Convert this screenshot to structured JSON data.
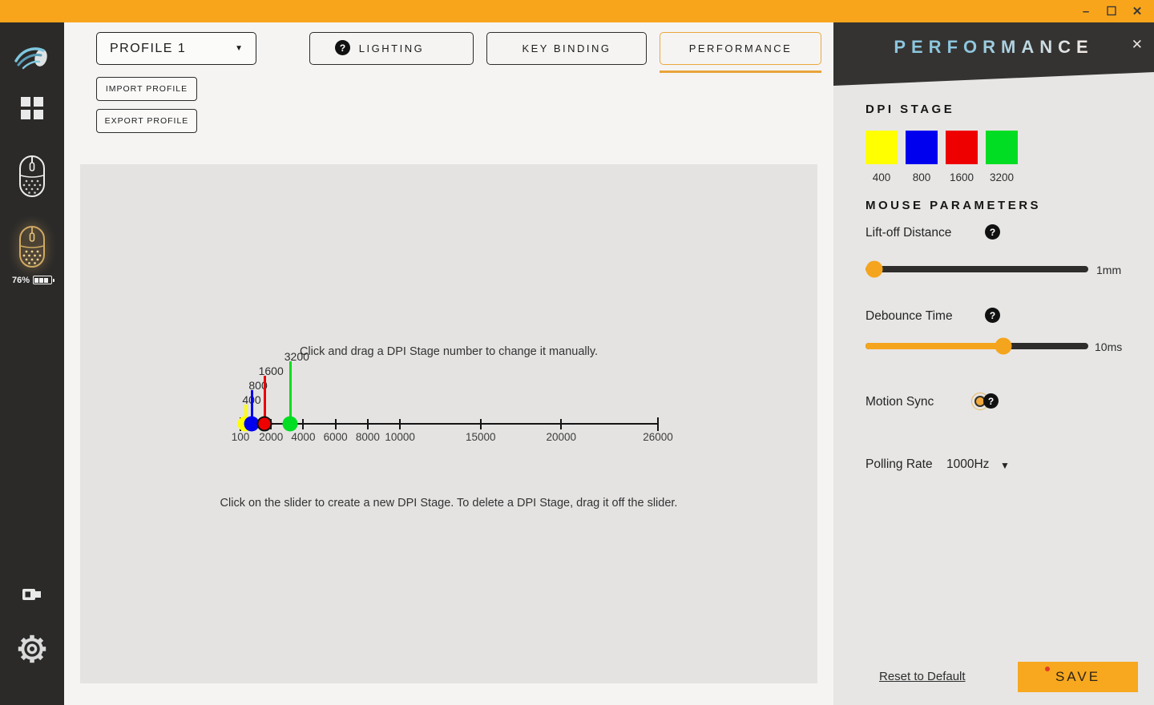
{
  "titlebar": {
    "minimize": "–",
    "maximize": "☐",
    "close": "✕"
  },
  "sidebar": {
    "battery": "76%"
  },
  "toolbar": {
    "profile": "PROFILE 1",
    "help": "?",
    "import": "IMPORT PROFILE",
    "export": "EXPORT PROFILE",
    "tabs": {
      "lighting": "LIGHTING",
      "keybinding": "KEY BINDING",
      "performance": "PERFORMANCE"
    },
    "active_tab": "PERFORMANCE"
  },
  "editor": {
    "hint_top": "Click and drag a DPI Stage number to change it manually.",
    "hint_bottom": "Click on the slider to create a new DPI Stage. To delete a DPI Stage, drag it off the slider."
  },
  "chart_data": {
    "type": "slider",
    "title": "DPI stage slider",
    "axis_min": 100,
    "axis_max": 26000,
    "ticks": [
      100,
      2000,
      4000,
      6000,
      8000,
      10000,
      15000,
      20000,
      26000
    ],
    "stages": [
      {
        "dpi": 400,
        "color": "#ffff00",
        "outlined": false
      },
      {
        "dpi": 800,
        "color": "#0000ee",
        "outlined": false
      },
      {
        "dpi": 1600,
        "color": "#ee0000",
        "outlined": true
      },
      {
        "dpi": 3200,
        "color": "#00dd22",
        "outlined": false
      }
    ]
  },
  "panel": {
    "title": "PERFORMANCE",
    "close": "✕",
    "dpi_heading": "DPI STAGE",
    "dpi_stages": [
      {
        "label": "400",
        "color": "#ffff00"
      },
      {
        "label": "800",
        "color": "#0000ee"
      },
      {
        "label": "1600",
        "color": "#ee0000"
      },
      {
        "label": "3200",
        "color": "#00dd22"
      }
    ],
    "params_heading": "MOUSE PARAMETERS",
    "liftoff_label": "Lift-off Distance",
    "liftoff_value": "1mm",
    "liftoff_percent": 4,
    "debounce_label": "Debounce Time",
    "debounce_value": "10ms",
    "debounce_percent": 62,
    "motion_label": "Motion Sync",
    "motion_enabled": true,
    "polling_label": "Polling Rate",
    "polling_value": "1000Hz",
    "reset_label": "Reset to Default",
    "save_label": "SAVE"
  },
  "colors": {
    "accent": "#f8a51b",
    "titlebar": "#f9a51b",
    "sidebar": "#2b2a29",
    "panel_header": "#353331"
  }
}
